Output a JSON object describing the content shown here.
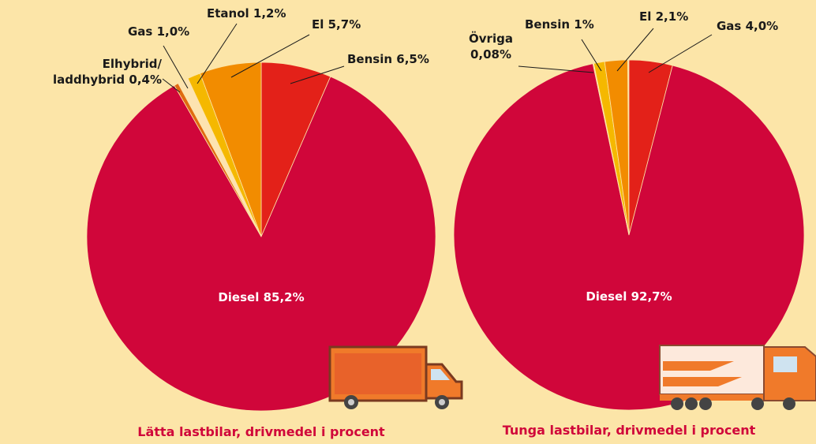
{
  "chart_data": [
    {
      "type": "pie",
      "title": "Lätta lastbilar, drivmedel i procent",
      "categories": [
        "Bensin",
        "Diesel",
        "Elhybrid/",
        "Gas",
        "Etanol",
        "El"
      ],
      "values": [
        6.5,
        85.2,
        0.4,
        1.0,
        1.2,
        5.7
      ],
      "value_labels": [
        "6,5%",
        "85,2%",
        "laddhybrid 0,4%",
        "1,0%",
        "1,2%",
        "5,7%"
      ],
      "colors": [
        "#e32119",
        "#d0063a",
        "#e06a10",
        "#fde3b0",
        "#f5b800",
        "#f28c00"
      ]
    },
    {
      "type": "pie",
      "title": "Tunga lastbilar, drivmedel i procent",
      "categories": [
        "Gas",
        "Diesel",
        "Övriga",
        "Bensin",
        "El"
      ],
      "values": [
        4.0,
        92.7,
        0.08,
        1,
        2.1
      ],
      "value_labels": [
        "4,0%",
        "92,7%",
        "0,08%",
        "1%",
        "2,1%"
      ],
      "colors": [
        "#e32119",
        "#d0063a",
        "#fde3b0",
        "#f5b800",
        "#f28c00"
      ]
    }
  ]
}
